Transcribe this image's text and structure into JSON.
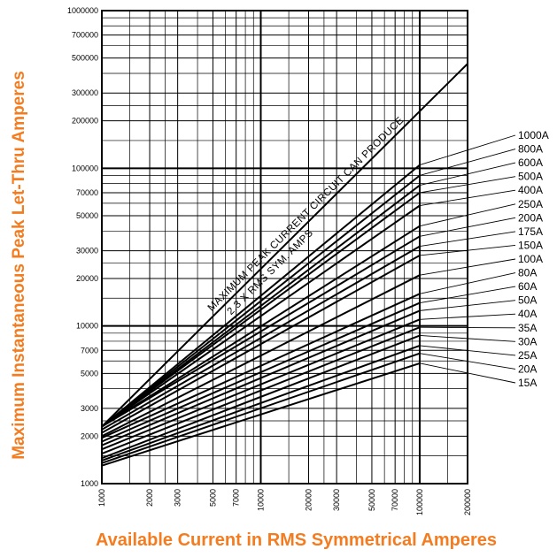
{
  "chart_data": {
    "type": "line",
    "title": "",
    "xlabel": "Available Current in RMS Symmetrical Amperes",
    "ylabel": "Maximum Instantaneous Peak Let-Thru Amperes",
    "xscale": "log",
    "yscale": "log",
    "xlim": [
      1000,
      200000
    ],
    "ylim": [
      1000,
      1000000
    ],
    "grid": true,
    "x_tick_labels": [
      "1000",
      "2000",
      "3000",
      "5000",
      "7000",
      "10000",
      "20000",
      "30000",
      "50000",
      "70000",
      "100000",
      "200000"
    ],
    "y_tick_labels": [
      "1000",
      "2000",
      "3000",
      "5000",
      "7000",
      "10000",
      "20000",
      "30000",
      "50000",
      "70000",
      "100000",
      "200000",
      "300000",
      "500000",
      "700000",
      "1000000"
    ],
    "annotations": [
      "MAXIMUM PEAK CURRENT CIRCUIT CAN PRODUCE",
      "2.3 X RMS SYM. AMPS"
    ],
    "reference_line": {
      "name": "MAXIMUM PEAK CURRENT CIRCUIT CAN PRODUCE",
      "x": [
        1000,
        200000
      ],
      "y": [
        2300,
        460000
      ]
    },
    "series": [
      {
        "name": "1000A",
        "x": [
          1000,
          100000
        ],
        "y": [
          2300,
          105000
        ]
      },
      {
        "name": "800A",
        "x": [
          1000,
          100000
        ],
        "y": [
          2300,
          90000
        ]
      },
      {
        "name": "600A",
        "x": [
          1000,
          100000
        ],
        "y": [
          2300,
          78000
        ]
      },
      {
        "name": "500A",
        "x": [
          1000,
          100000
        ],
        "y": [
          2300,
          70000
        ]
      },
      {
        "name": "400A",
        "x": [
          1000,
          100000
        ],
        "y": [
          2300,
          58000
        ]
      },
      {
        "name": "250A",
        "x": [
          1000,
          100000
        ],
        "y": [
          2300,
          43000
        ]
      },
      {
        "name": "200A",
        "x": [
          1000,
          100000
        ],
        "y": [
          2300,
          37000
        ]
      },
      {
        "name": "175A",
        "x": [
          1000,
          100000
        ],
        "y": [
          2200,
          32000
        ]
      },
      {
        "name": "150A",
        "x": [
          1000,
          100000
        ],
        "y": [
          2100,
          28000
        ]
      },
      {
        "name": "100A",
        "x": [
          1000,
          100000
        ],
        "y": [
          2000,
          21000
        ]
      },
      {
        "name": "80A",
        "x": [
          1000,
          100000
        ],
        "y": [
          1950,
          16000
        ]
      },
      {
        "name": "60A",
        "x": [
          1000,
          100000
        ],
        "y": [
          1850,
          14000
        ]
      },
      {
        "name": "50A",
        "x": [
          1000,
          100000
        ],
        "y": [
          1750,
          12500
        ]
      },
      {
        "name": "40A",
        "x": [
          1000,
          100000
        ],
        "y": [
          1650,
          11000
        ]
      },
      {
        "name": "35A",
        "x": [
          1000,
          100000
        ],
        "y": [
          1550,
          9800
        ]
      },
      {
        "name": "30A",
        "x": [
          1000,
          100000
        ],
        "y": [
          1450,
          8700
        ]
      },
      {
        "name": "25A",
        "x": [
          1000,
          100000
        ],
        "y": [
          1400,
          7500
        ]
      },
      {
        "name": "20A",
        "x": [
          1000,
          100000
        ],
        "y": [
          1350,
          6700
        ]
      },
      {
        "name": "15A",
        "x": [
          1000,
          100000
        ],
        "y": [
          1300,
          5800
        ]
      }
    ]
  }
}
